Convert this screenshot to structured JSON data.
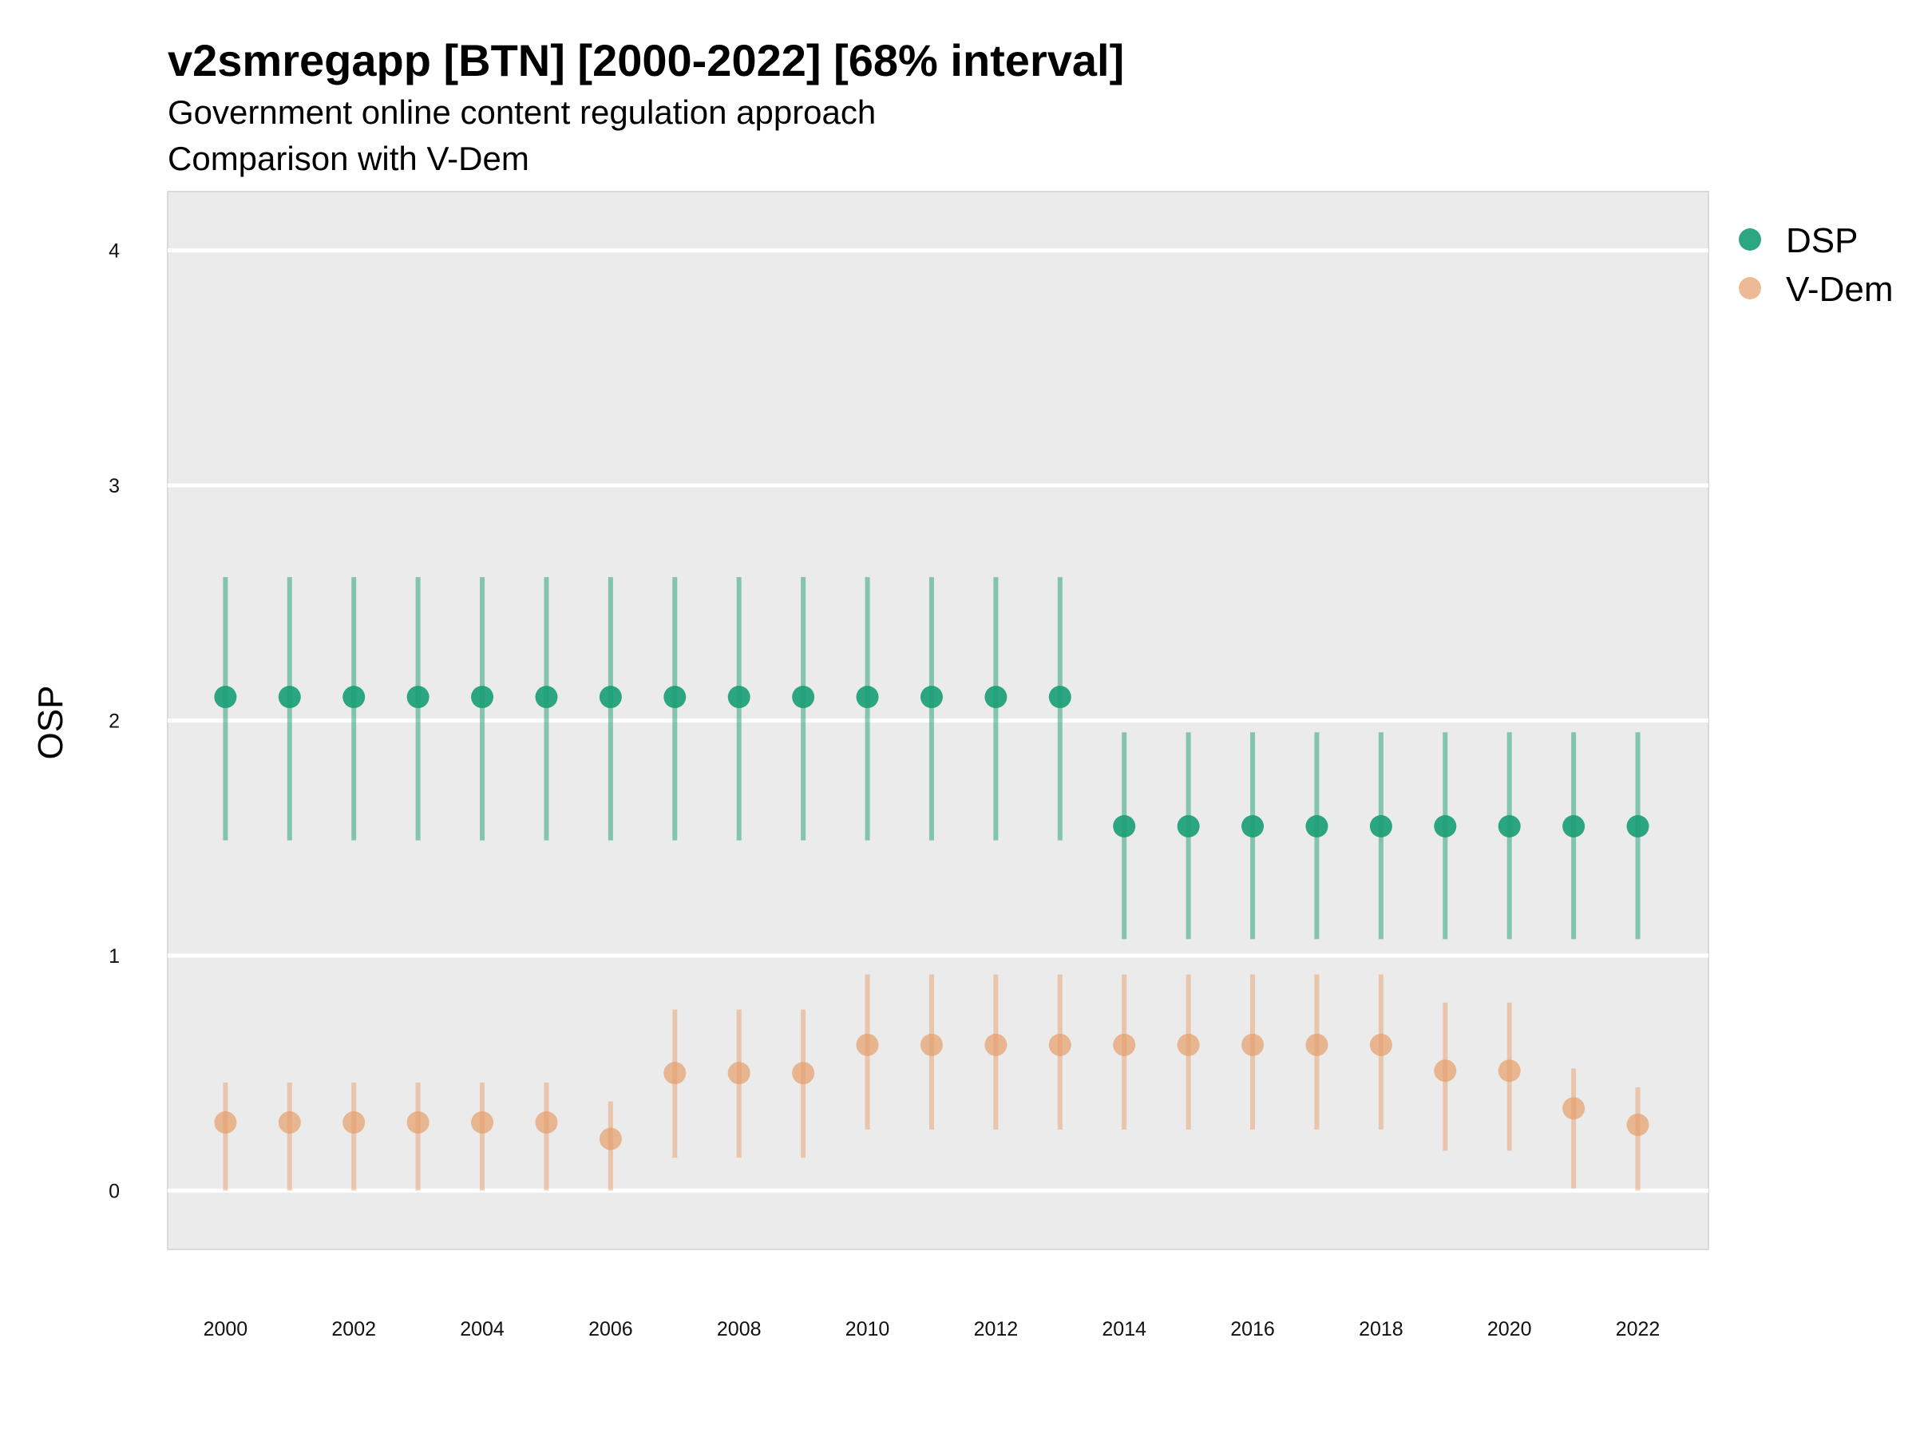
{
  "chart_data": {
    "type": "scatter",
    "title": "v2smregapp [BTN] [2000-2022] [68% interval]",
    "subtitle_lines": [
      "Government online content regulation approach",
      "Comparison with V-Dem"
    ],
    "xlabel": "",
    "ylabel": "OSP",
    "x_ticks": [
      2000,
      2002,
      2004,
      2006,
      2008,
      2010,
      2012,
      2014,
      2016,
      2018,
      2020,
      2022
    ],
    "y_ticks": [
      0,
      1,
      2,
      3,
      4
    ],
    "xlim": [
      1999.1,
      2023.1
    ],
    "ylim": [
      -0.25,
      4.25
    ],
    "grid": true,
    "legend_position": "right",
    "x": [
      2000,
      2001,
      2002,
      2003,
      2004,
      2005,
      2006,
      2007,
      2008,
      2009,
      2010,
      2011,
      2012,
      2013,
      2014,
      2015,
      2016,
      2017,
      2018,
      2019,
      2020,
      2021,
      2022
    ],
    "series": [
      {
        "name": "DSP",
        "color": "#1B9E77",
        "values": [
          2.1,
          2.1,
          2.1,
          2.1,
          2.1,
          2.1,
          2.1,
          2.1,
          2.1,
          2.1,
          2.1,
          2.1,
          2.1,
          2.1,
          1.55,
          1.55,
          1.55,
          1.55,
          1.55,
          1.55,
          1.55,
          1.55,
          1.55
        ],
        "lower": [
          1.49,
          1.49,
          1.49,
          1.49,
          1.49,
          1.49,
          1.49,
          1.49,
          1.49,
          1.49,
          1.49,
          1.49,
          1.49,
          1.49,
          1.07,
          1.07,
          1.07,
          1.07,
          1.07,
          1.07,
          1.07,
          1.07,
          1.07
        ],
        "upper": [
          2.61,
          2.61,
          2.61,
          2.61,
          2.61,
          2.61,
          2.61,
          2.61,
          2.61,
          2.61,
          2.61,
          2.61,
          2.61,
          2.61,
          1.95,
          1.95,
          1.95,
          1.95,
          1.95,
          1.95,
          1.95,
          1.95,
          1.95
        ]
      },
      {
        "name": "V-Dem",
        "color": "#E6A06E",
        "values": [
          0.29,
          0.29,
          0.29,
          0.29,
          0.29,
          0.29,
          0.22,
          0.5,
          0.5,
          0.5,
          0.62,
          0.62,
          0.62,
          0.62,
          0.62,
          0.62,
          0.62,
          0.62,
          0.62,
          0.51,
          0.51,
          0.35,
          0.28
        ],
        "lower": [
          0.0,
          0.0,
          0.0,
          0.0,
          0.0,
          0.0,
          0.0,
          0.14,
          0.14,
          0.14,
          0.26,
          0.26,
          0.26,
          0.26,
          0.26,
          0.26,
          0.26,
          0.26,
          0.26,
          0.17,
          0.17,
          0.01,
          0.0
        ],
        "upper": [
          0.46,
          0.46,
          0.46,
          0.46,
          0.46,
          0.46,
          0.38,
          0.77,
          0.77,
          0.77,
          0.92,
          0.92,
          0.92,
          0.92,
          0.92,
          0.92,
          0.92,
          0.92,
          0.92,
          0.8,
          0.8,
          0.52,
          0.44
        ]
      }
    ]
  }
}
